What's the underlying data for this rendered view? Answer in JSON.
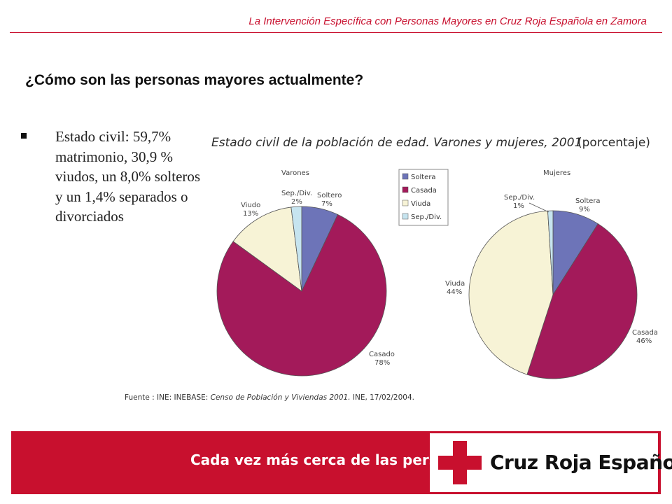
{
  "header": {
    "title": "La Intervención Específica con Personas Mayores  en Cruz Roja Española en Zamora"
  },
  "slide": {
    "title": "¿Cómo son las personas mayores actualmente?",
    "bullet_text": "Estado civil: 59,7% matrimonio, 30,9 % viudos, un 8,0% solteros y un 1,4% separados o divorciados"
  },
  "chart_data": [
    {
      "type": "pie",
      "title": "Estado civil de la población de edad. Varones y mujeres, 2001",
      "title_suffix": "(porcentaje)",
      "subtitle": "Varones",
      "categories": [
        "Soltero",
        "Casado",
        "Viudo",
        "Sep./Div."
      ],
      "values": [
        7,
        78,
        13,
        2
      ],
      "labels": [
        "7%",
        "78%",
        "13%",
        "2%"
      ],
      "colors": [
        "#6d74b8",
        "#a31a5a",
        "#f7f3d6",
        "#c6e4ef"
      ]
    },
    {
      "type": "pie",
      "subtitle": "Mujeres",
      "categories": [
        "Soltera",
        "Casada",
        "Viuda",
        "Sep./Div."
      ],
      "values": [
        9,
        46,
        44,
        1
      ],
      "labels": [
        "9%",
        "46%",
        "44%",
        "1%"
      ],
      "colors": [
        "#6d74b8",
        "#a31a5a",
        "#f7f3d6",
        "#c6e4ef"
      ]
    }
  ],
  "legend": {
    "items": [
      {
        "label": "Soltera",
        "color": "#6d74b8"
      },
      {
        "label": "Casada",
        "color": "#a31a5a"
      },
      {
        "label": "Viuda",
        "color": "#f7f3d6"
      },
      {
        "label": "Sep./Div.",
        "color": "#c6e4ef"
      }
    ]
  },
  "source": {
    "prefix": "Fuente : INE: INEBASE: ",
    "italic": "Censo de Población y Viviendas 2001.",
    "suffix": " INE, 17/02/2004."
  },
  "footer": {
    "slogan": "Cada vez más cerca de las personas",
    "logo_text": "Cruz Roja Española"
  },
  "colors": {
    "brand_red": "#c8102e"
  }
}
